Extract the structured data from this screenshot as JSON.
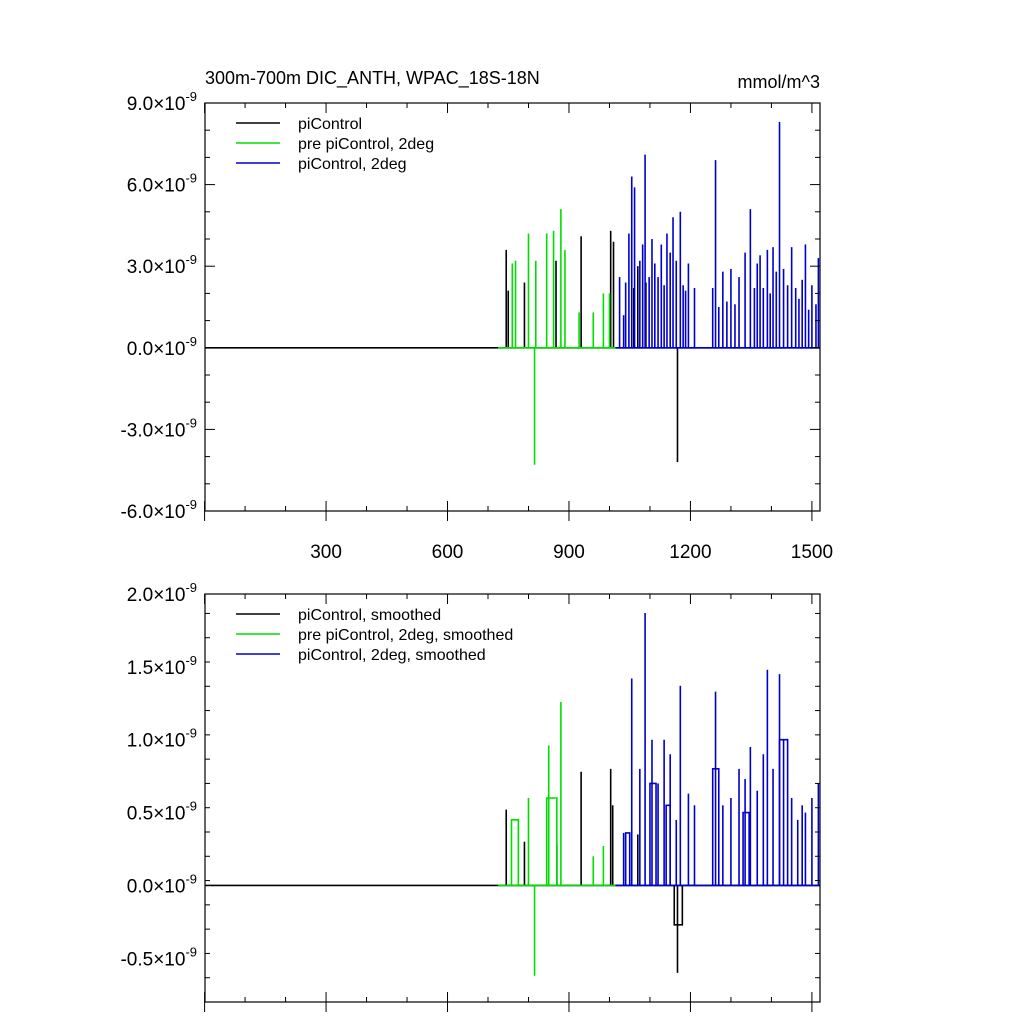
{
  "chart_data": [
    {
      "type": "line",
      "title": "300m-700m DIC_ANTH, WPAC_18S-18N",
      "units": "mmol/m^3",
      "ylim": [
        -6e-09,
        9e-09
      ],
      "xlim": [
        1,
        1520
      ],
      "yticks": [
        {
          "value": -6e-09,
          "mant": "-6.0",
          "exp": "-9"
        },
        {
          "value": -3e-09,
          "mant": "-3.0",
          "exp": "-9"
        },
        {
          "value": 0.0,
          "mant": "0.0",
          "exp": "-9"
        },
        {
          "value": 3e-09,
          "mant": "3.0",
          "exp": "-9"
        },
        {
          "value": 6e-09,
          "mant": "6.0",
          "exp": "-9"
        },
        {
          "value": 9e-09,
          "mant": "9.0",
          "exp": "-9"
        }
      ],
      "xticks": [
        {
          "value": 300,
          "label": "300"
        },
        {
          "value": 600,
          "label": "600"
        },
        {
          "value": 900,
          "label": "900"
        },
        {
          "value": 1200,
          "label": "1200"
        },
        {
          "value": 1500,
          "label": "1500"
        }
      ],
      "legend": "top-left",
      "series": [
        {
          "name": "piControl",
          "color": "#000000",
          "baseline": [
            [
              1,
              0
            ],
            [
              1520,
              0
            ]
          ],
          "spikes": [
            [
              745,
              3.6e-09
            ],
            [
              750,
              2.1e-09
            ],
            [
              790,
              2.4e-09
            ],
            [
              868,
              3.2e-09
            ],
            [
              930,
              4.1e-09
            ],
            [
              1003,
              4.3e-09
            ],
            [
              1010,
              3.9e-09
            ],
            [
              1060,
              2.2e-09
            ],
            [
              1070,
              3e-09
            ],
            [
              1090,
              2.4e-09
            ],
            [
              1168,
              -4.2e-09
            ]
          ]
        },
        {
          "name": "pre piControl, 2deg",
          "color": "#00dd00",
          "baseline": [
            [
              725,
              0
            ],
            [
              1015,
              0
            ]
          ],
          "spikes": [
            [
              760,
              3.1e-09
            ],
            [
              768,
              3.2e-09
            ],
            [
              800,
              4.2e-09
            ],
            [
              815,
              -4.3e-09
            ],
            [
              818,
              3.2e-09
            ],
            [
              845,
              4.2e-09
            ],
            [
              862,
              4.3e-09
            ],
            [
              880,
              5.1e-09
            ],
            [
              890,
              3.6e-09
            ],
            [
              925,
              1.3e-09
            ],
            [
              960,
              1.3e-09
            ],
            [
              985,
              2e-09
            ],
            [
              1000,
              2e-09
            ]
          ]
        },
        {
          "name": "piControl, 2deg",
          "color": "#0000cc",
          "baseline": [
            [
              1015,
              0
            ],
            [
              1520,
              0
            ]
          ],
          "spikes": [
            [
              1025,
              2.6e-09
            ],
            [
              1035,
              1.2e-09
            ],
            [
              1040,
              2.4e-09
            ],
            [
              1048,
              4.2e-09
            ],
            [
              1055,
              6.3e-09
            ],
            [
              1062,
              5.9e-09
            ],
            [
              1075,
              3.2e-09
            ],
            [
              1082,
              3.8e-09
            ],
            [
              1088,
              7.1e-09
            ],
            [
              1098,
              2.6e-09
            ],
            [
              1105,
              4e-09
            ],
            [
              1112,
              3.1e-09
            ],
            [
              1120,
              2.6e-09
            ],
            [
              1128,
              3.8e-09
            ],
            [
              1135,
              2.3e-09
            ],
            [
              1142,
              4.2e-09
            ],
            [
              1150,
              3.5e-09
            ],
            [
              1157,
              4.8e-09
            ],
            [
              1165,
              3.2e-09
            ],
            [
              1175,
              5e-09
            ],
            [
              1182,
              2.3e-09
            ],
            [
              1188,
              2.1e-09
            ],
            [
              1195,
              3.1e-09
            ],
            [
              1210,
              2.2e-09
            ],
            [
              1255,
              2.2e-09
            ],
            [
              1262,
              6.9e-09
            ],
            [
              1270,
              1.5e-09
            ],
            [
              1280,
              2.8e-09
            ],
            [
              1290,
              1.7e-09
            ],
            [
              1300,
              2.9e-09
            ],
            [
              1310,
              1.6e-09
            ],
            [
              1320,
              2.6e-09
            ],
            [
              1335,
              3.5e-09
            ],
            [
              1348,
              5.1e-09
            ],
            [
              1358,
              2.2e-09
            ],
            [
              1365,
              3.1e-09
            ],
            [
              1372,
              3.4e-09
            ],
            [
              1380,
              2.2e-09
            ],
            [
              1390,
              3.6e-09
            ],
            [
              1397,
              2e-09
            ],
            [
              1404,
              3.7e-09
            ],
            [
              1412,
              2.8e-09
            ],
            [
              1420,
              8.3e-09
            ],
            [
              1430,
              2.9e-09
            ],
            [
              1440,
              2.3e-09
            ],
            [
              1450,
              3.7e-09
            ],
            [
              1460,
              2.2e-09
            ],
            [
              1468,
              1.8e-09
            ],
            [
              1476,
              2.5e-09
            ],
            [
              1484,
              3.8e-09
            ],
            [
              1492,
              1.4e-09
            ],
            [
              1500,
              2.3e-09
            ],
            [
              1510,
              1.6e-09
            ],
            [
              1516,
              3.3e-09
            ]
          ]
        }
      ]
    },
    {
      "type": "line",
      "ylim": [
        -8e-10,
        2e-09
      ],
      "xlim": [
        1,
        1520
      ],
      "yticks": [
        {
          "value": -5e-10,
          "mant": "-0.5",
          "exp": "-9"
        },
        {
          "value": 0.0,
          "mant": "0.0",
          "exp": "-9"
        },
        {
          "value": 5e-10,
          "mant": "0.5",
          "exp": "-9"
        },
        {
          "value": 1e-09,
          "mant": "1.0",
          "exp": "-9"
        },
        {
          "value": 1.5e-09,
          "mant": "1.5",
          "exp": "-9"
        },
        {
          "value": 2e-09,
          "mant": "2.0",
          "exp": "-9"
        }
      ],
      "xticks": [
        {
          "value": 300,
          "label": ""
        },
        {
          "value": 600,
          "label": ""
        },
        {
          "value": 900,
          "label": ""
        },
        {
          "value": 1200,
          "label": ""
        },
        {
          "value": 1500,
          "label": ""
        }
      ],
      "legend": "top-left",
      "series": [
        {
          "name": "piControl, smoothed",
          "color": "#000000",
          "baseline": [
            [
              1,
              0
            ],
            [
              1520,
              0
            ]
          ],
          "spikes": [
            [
              745,
              5.2e-10
            ],
            [
              790,
              3e-10
            ],
            [
              870,
              2.8e-10
            ],
            [
              930,
              7.8e-10
            ],
            [
              1003,
              8e-10
            ],
            [
              1008,
              5.5e-10
            ],
            [
              1070,
              3.5e-10
            ],
            [
              1168,
              -6e-10
            ]
          ],
          "blocks": [
            [
              1160,
              1180,
              -2.7e-10
            ]
          ]
        },
        {
          "name": "pre piControl, 2deg, smoothed",
          "color": "#00dd00",
          "baseline": [
            [
              725,
              0
            ],
            [
              1015,
              0
            ]
          ],
          "spikes": [
            [
              800,
              6e-10
            ],
            [
              815,
              -6.2e-10
            ],
            [
              850,
              9.6e-10
            ],
            [
              880,
              1.26e-09
            ],
            [
              960,
              2e-10
            ],
            [
              985,
              2.7e-10
            ]
          ],
          "blocks": [
            [
              758,
              775,
              4.5e-10
            ],
            [
              845,
              870,
              6e-10
            ]
          ]
        },
        {
          "name": "piControl, 2deg, smoothed",
          "color": "#0000cc",
          "baseline": [
            [
              1015,
              0
            ],
            [
              1520,
              0
            ]
          ],
          "spikes": [
            [
              1035,
              3.6e-10
            ],
            [
              1055,
              1.42e-09
            ],
            [
              1075,
              8e-10
            ],
            [
              1088,
              1.87e-09
            ],
            [
              1105,
              1e-09
            ],
            [
              1120,
              7e-10
            ],
            [
              1135,
              1e-09
            ],
            [
              1150,
              9e-10
            ],
            [
              1165,
              4.5e-10
            ],
            [
              1175,
              1.37e-09
            ],
            [
              1195,
              6.3e-10
            ],
            [
              1210,
              5.5e-10
            ],
            [
              1262,
              1.33e-09
            ],
            [
              1280,
              5.5e-10
            ],
            [
              1300,
              6e-10
            ],
            [
              1320,
              8e-10
            ],
            [
              1335,
              7.3e-10
            ],
            [
              1348,
              9.5e-10
            ],
            [
              1365,
              6.5e-10
            ],
            [
              1380,
              9e-10
            ],
            [
              1390,
              1.48e-09
            ],
            [
              1404,
              8e-10
            ],
            [
              1420,
              1.45e-09
            ],
            [
              1430,
              1e-09
            ],
            [
              1450,
              6e-10
            ],
            [
              1465,
              4.5e-10
            ],
            [
              1476,
              5.5e-10
            ],
            [
              1484,
              5e-10
            ],
            [
              1500,
              6e-10
            ],
            [
              1516,
              7e-10
            ]
          ],
          "blocks": [
            [
              1040,
              1050,
              3.6e-10
            ],
            [
              1100,
              1115,
              7e-10
            ],
            [
              1140,
              1150,
              5.5e-10
            ],
            [
              1255,
              1270,
              8e-10
            ],
            [
              1330,
              1345,
              5e-10
            ],
            [
              1420,
              1440,
              1e-09
            ]
          ]
        }
      ]
    }
  ]
}
